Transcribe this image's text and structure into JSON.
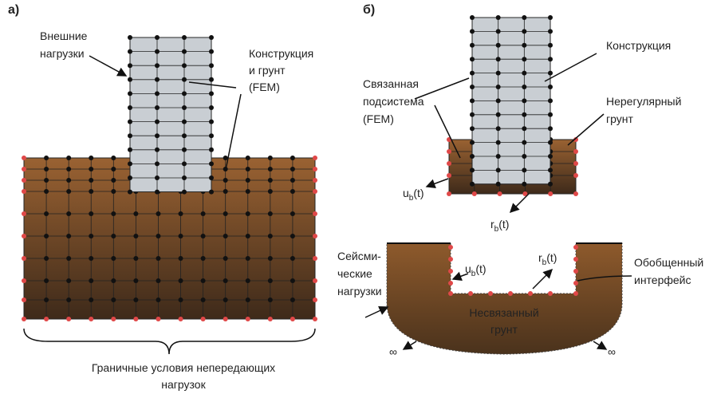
{
  "panel_a": {
    "label": "а)",
    "external_loads": [
      "Внешние",
      "нагрузки"
    ],
    "structure_soil": [
      "Конструкция",
      "и грунт",
      "(FEM)"
    ],
    "caption": [
      "Граничные условия непередающих",
      "нагрузок"
    ]
  },
  "panel_b": {
    "label": "б)",
    "structure": "Конструкция",
    "coupled_subsystem": [
      "Связанная",
      "подсистема",
      "(FEM)"
    ],
    "irregular_soil": [
      "Нерегулярный",
      "грунт"
    ],
    "u_top": {
      "base": "u",
      "sub": "b",
      "arg": "(t)"
    },
    "r_top": {
      "base": "r",
      "sub": "b",
      "arg": "(t)"
    },
    "seismic_loads": [
      "Сейсми-",
      "ческие",
      "нагрузки"
    ],
    "u_bottom": {
      "base": "u",
      "sub": "b",
      "arg": "(t)"
    },
    "r_bottom": {
      "base": "r",
      "sub": "b",
      "arg": "(t)"
    },
    "generalized_interface": [
      "Обобщенный",
      "интерфейс"
    ],
    "unbounded_soil": [
      "Несвязанный",
      "грунт"
    ],
    "infinity_left": "∞",
    "infinity_right": "∞"
  }
}
